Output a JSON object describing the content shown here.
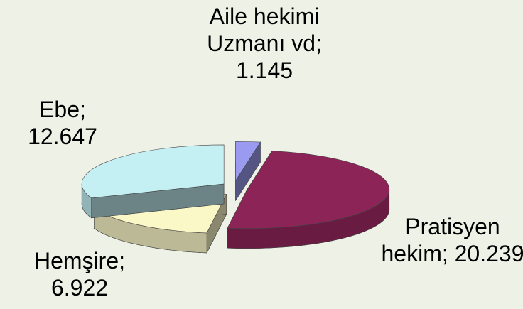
{
  "chart_data": {
    "type": "pie3d",
    "categories": [
      "Aile hekimi Uzmanı vd;",
      "Pratisyen hekim;",
      "Hemşire;",
      "Ebe;"
    ],
    "values": [
      1145,
      20239,
      6922,
      12647
    ],
    "value_labels": [
      "1.145",
      "20.239",
      "6.922",
      "12.647"
    ],
    "colors": [
      "#9a9af0",
      "#8c2458",
      "#fbf8c8",
      "#c4f0f4"
    ]
  }
}
